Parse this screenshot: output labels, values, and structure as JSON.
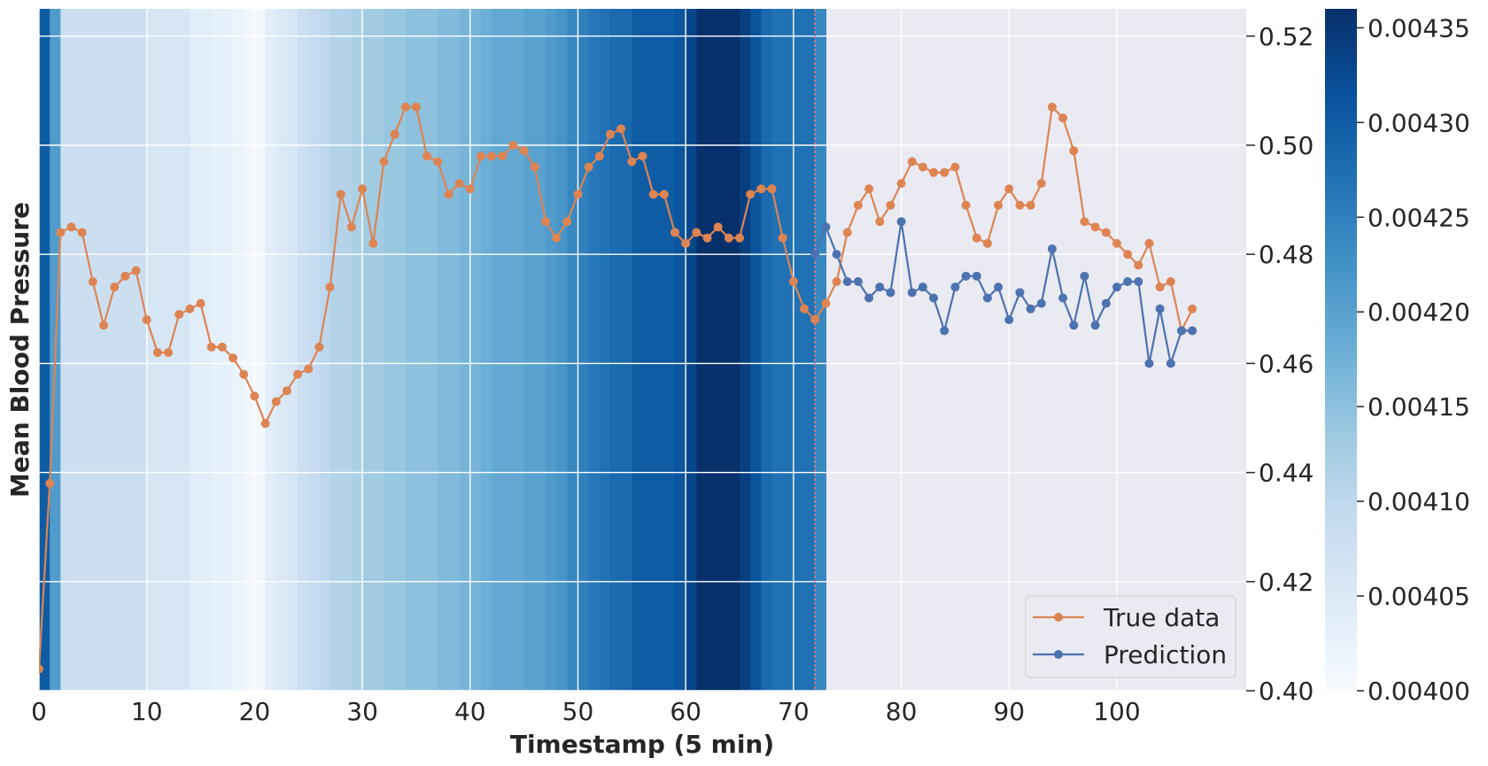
{
  "chart_data": {
    "type": "line",
    "xlabel": "Timestamp (5 min)",
    "ylabel": "Mean Blood Pressure",
    "xlim": [
      0,
      112
    ],
    "ylim": [
      0.4,
      0.525
    ],
    "x_ticks": [
      0,
      10,
      20,
      30,
      40,
      50,
      60,
      70,
      80,
      90,
      100
    ],
    "x_tick_labels": [
      "0",
      "10",
      "20",
      "30",
      "40",
      "50",
      "60",
      "70",
      "80",
      "90",
      "100"
    ],
    "y_ticks": [
      0.4,
      0.42,
      0.44,
      0.46,
      0.48,
      0.5,
      0.52
    ],
    "y_tick_labels": [
      "0.40",
      "0.42",
      "0.44",
      "0.46",
      "0.48",
      "0.50",
      "0.52"
    ],
    "y_axis_side": "right",
    "grid": true,
    "background_color": "#eaeaf2",
    "split_x": 72,
    "split_line_color": "#e07b7b",
    "legend": {
      "placement": "lower-right"
    },
    "series": [
      {
        "name": "True data",
        "color": "#dd8452",
        "x_start": 0,
        "values": [
          0.404,
          0.438,
          0.484,
          0.485,
          0.484,
          0.475,
          0.467,
          0.474,
          0.476,
          0.477,
          0.468,
          0.462,
          0.462,
          0.469,
          0.47,
          0.471,
          0.463,
          0.463,
          0.461,
          0.458,
          0.454,
          0.449,
          0.453,
          0.455,
          0.458,
          0.459,
          0.463,
          0.474,
          0.491,
          0.485,
          0.492,
          0.482,
          0.497,
          0.502,
          0.507,
          0.507,
          0.498,
          0.497,
          0.491,
          0.493,
          0.492,
          0.498,
          0.498,
          0.498,
          0.5,
          0.499,
          0.496,
          0.486,
          0.483,
          0.486,
          0.491,
          0.496,
          0.498,
          0.502,
          0.503,
          0.497,
          0.498,
          0.491,
          0.491,
          0.484,
          0.482,
          0.484,
          0.483,
          0.485,
          0.483,
          0.483,
          0.491,
          0.492,
          0.492,
          0.483,
          0.475,
          0.47,
          0.468,
          0.471,
          0.475,
          0.484,
          0.489,
          0.492,
          0.486,
          0.489,
          0.493,
          0.497,
          0.496,
          0.495,
          0.495,
          0.496,
          0.489,
          0.483,
          0.482,
          0.489,
          0.492,
          0.489,
          0.489,
          0.493,
          0.507,
          0.505,
          0.499,
          0.486,
          0.485,
          0.484,
          0.482,
          0.48,
          0.478,
          0.482,
          0.474,
          0.475,
          0.466,
          0.47
        ]
      },
      {
        "name": "Prediction",
        "color": "#4c72b0",
        "x_start": 72,
        "values": [
          0.48,
          0.485,
          0.48,
          0.475,
          0.475,
          0.472,
          0.474,
          0.473,
          0.486,
          0.473,
          0.474,
          0.472,
          0.466,
          0.474,
          0.476,
          0.476,
          0.472,
          0.474,
          0.468,
          0.473,
          0.47,
          0.471,
          0.481,
          0.472,
          0.467,
          0.476,
          0.467,
          0.471,
          0.474,
          0.475,
          0.475,
          0.46,
          0.47,
          0.46,
          0.466,
          0.466
        ]
      }
    ],
    "heatmap_background": {
      "colormap": "Blues",
      "range": [
        0.004,
        0.00436
      ],
      "colorbar_ticks": [
        0.004,
        0.00405,
        0.0041,
        0.00415,
        0.0042,
        0.00425,
        0.0043,
        0.00435
      ],
      "colorbar_tick_labels": [
        "0.00400",
        "0.00405",
        "0.00410",
        "0.00415",
        "0.00420",
        "0.00425",
        "0.00430",
        "0.00435"
      ],
      "values": [
        0.0043,
        0.00421,
        0.00408,
        0.00408,
        0.00408,
        0.00408,
        0.00408,
        0.00408,
        0.00408,
        0.00408,
        0.00406,
        0.00406,
        0.00406,
        0.00406,
        0.00404,
        0.00404,
        0.00403,
        0.00403,
        0.00402,
        0.00401,
        0.00401,
        0.00404,
        0.00405,
        0.00406,
        0.00408,
        0.00409,
        0.0041,
        0.00411,
        0.00411,
        0.00412,
        0.00413,
        0.00413,
        0.00414,
        0.00414,
        0.00415,
        0.00415,
        0.00415,
        0.00416,
        0.00416,
        0.00417,
        0.00417,
        0.00418,
        0.00419,
        0.00419,
        0.00419,
        0.0042,
        0.0042,
        0.00421,
        0.00422,
        0.00424,
        0.00425,
        0.00426,
        0.00427,
        0.00428,
        0.00428,
        0.0043,
        0.0043,
        0.0043,
        0.0043,
        0.00431,
        0.00433,
        0.00436,
        0.00436,
        0.00436,
        0.00436,
        0.00434,
        0.00431,
        0.00428,
        0.00427,
        0.00427,
        0.00427,
        0.00427,
        0.00424
      ]
    }
  }
}
